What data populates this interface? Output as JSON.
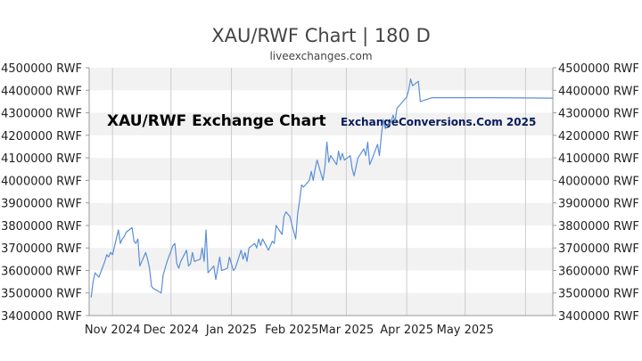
{
  "chart_data": {
    "type": "line",
    "title": "XAU/RWF Chart | 180 D",
    "subtitle": "liveexchanges.com",
    "watermarks": [
      "XAU/RWF Exchange Chart",
      "ExchangeConversions.Com 2025"
    ],
    "y_tick_labels": [
      "4500000 RWF",
      "4400000 RWF",
      "4300000 RWF",
      "4200000 RWF",
      "4100000 RWF",
      "4000000 RWF",
      "3900000 RWF",
      "3800000 RWF",
      "3700000 RWF",
      "3600000 RWF",
      "3500000 RWF",
      "3400000 RWF"
    ],
    "ylim": [
      3400000,
      4500000
    ],
    "y_ticks": [
      4500000,
      4400000,
      4300000,
      4200000,
      4100000,
      4000000,
      3900000,
      3800000,
      3700000,
      3600000,
      3500000,
      3400000
    ],
    "x_tick_labels": [
      "Nov 2024",
      "Dec 2024",
      "Jan 2025",
      "Feb 2025",
      "Mar 2025",
      "Apr 2025",
      "May 2025"
    ],
    "x_ticks": [
      "2024-11-01",
      "2024-12-01",
      "2025-01-01",
      "2025-02-01",
      "2025-03-01",
      "2025-04-01",
      "2025-05-01"
    ],
    "xlim": [
      "2024-10-20",
      "2025-06-15"
    ],
    "grid": "alternating horizontal bands, vertical month lines",
    "colors": {
      "line": "#5b8fd6",
      "band": "#f2f2f2",
      "grid": "#cccccc",
      "axis": "#999999"
    },
    "series": [
      {
        "x": [
          "2024-10-21",
          "2024-10-22",
          "2024-10-23",
          "2024-10-24",
          "2024-10-25",
          "2024-10-28",
          "2024-10-29",
          "2024-10-30",
          "2024-10-31",
          "2024-11-01",
          "2024-11-04",
          "2024-11-05",
          "2024-11-06",
          "2024-11-07",
          "2024-11-08",
          "2024-11-11",
          "2024-11-12",
          "2024-11-13",
          "2024-11-14",
          "2024-11-15",
          "2024-11-18",
          "2024-11-19",
          "2024-11-20",
          "2024-11-21",
          "2024-11-22",
          "2024-11-25",
          "2024-11-26",
          "2024-11-27",
          "2024-11-28",
          "2024-11-29",
          "2024-12-02",
          "2024-12-03",
          "2024-12-04",
          "2024-12-05",
          "2024-12-06",
          "2024-12-09",
          "2024-12-10",
          "2024-12-11",
          "2024-12-12",
          "2024-12-13",
          "2024-12-16",
          "2024-12-17",
          "2024-12-18",
          "2024-12-19",
          "2024-12-20",
          "2024-12-23",
          "2024-12-24",
          "2024-12-26",
          "2024-12-27",
          "2024-12-30",
          "2024-12-31",
          "2025-01-02",
          "2025-01-03",
          "2025-01-06",
          "2025-01-07",
          "2025-01-08",
          "2025-01-09",
          "2025-01-10",
          "2025-01-13",
          "2025-01-14",
          "2025-01-15",
          "2025-01-16",
          "2025-01-17",
          "2025-01-20",
          "2025-01-21",
          "2025-01-22",
          "2025-01-23",
          "2025-01-24",
          "2025-01-27",
          "2025-01-28",
          "2025-01-29",
          "2025-01-30",
          "2025-01-31",
          "2025-02-03",
          "2025-02-04",
          "2025-02-05",
          "2025-02-06",
          "2025-02-07",
          "2025-02-10",
          "2025-02-11",
          "2025-02-12",
          "2025-02-13",
          "2025-02-14",
          "2025-02-17",
          "2025-02-18",
          "2025-02-19",
          "2025-02-20",
          "2025-02-21",
          "2025-02-24",
          "2025-02-25",
          "2025-02-26",
          "2025-02-27",
          "2025-02-28",
          "2025-03-03",
          "2025-03-04",
          "2025-03-05",
          "2025-03-06",
          "2025-03-07",
          "2025-03-10",
          "2025-03-11",
          "2025-03-12",
          "2025-03-13",
          "2025-03-14",
          "2025-03-17",
          "2025-03-18",
          "2025-03-19",
          "2025-03-20",
          "2025-03-21",
          "2025-03-24",
          "2025-03-25",
          "2025-03-26",
          "2025-03-27",
          "2025-03-28",
          "2025-03-31",
          "2025-04-01",
          "2025-04-02",
          "2025-04-03",
          "2025-04-04",
          "2025-04-07",
          "2025-04-08",
          "2025-04-14",
          "2025-05-01",
          "2025-05-15",
          "2025-06-01",
          "2025-06-15"
        ],
        "values": [
          3480000,
          3550000,
          3590000,
          3580000,
          3570000,
          3640000,
          3670000,
          3660000,
          3680000,
          3670000,
          3780000,
          3720000,
          3740000,
          3750000,
          3770000,
          3790000,
          3730000,
          3720000,
          3740000,
          3620000,
          3680000,
          3650000,
          3610000,
          3530000,
          3520000,
          3505000,
          3500000,
          3580000,
          3610000,
          3640000,
          3710000,
          3720000,
          3630000,
          3610000,
          3640000,
          3690000,
          3620000,
          3630000,
          3680000,
          3640000,
          3650000,
          3700000,
          3640000,
          3780000,
          3590000,
          3620000,
          3560000,
          3660000,
          3600000,
          3610000,
          3660000,
          3600000,
          3610000,
          3690000,
          3650000,
          3680000,
          3640000,
          3700000,
          3720000,
          3700000,
          3740000,
          3710000,
          3740000,
          3690000,
          3710000,
          3730000,
          3720000,
          3800000,
          3760000,
          3840000,
          3860000,
          3850000,
          3840000,
          3740000,
          3850000,
          3910000,
          3980000,
          3970000,
          4000000,
          4040000,
          4000000,
          4050000,
          4090000,
          4000000,
          4060000,
          4170000,
          4080000,
          4110000,
          4070000,
          4130000,
          4090000,
          4120000,
          4090000,
          4110000,
          4050000,
          4020000,
          4060000,
          4100000,
          4140000,
          4110000,
          4170000,
          4070000,
          4090000,
          4160000,
          4110000,
          4200000,
          4270000,
          4230000,
          4260000,
          4290000,
          4260000,
          4320000,
          4330000,
          4360000,
          4370000,
          4400000,
          4450000,
          4420000,
          4440000,
          4350000,
          4367000,
          4367000,
          4367000,
          4366000,
          4365000
        ]
      }
    ]
  }
}
